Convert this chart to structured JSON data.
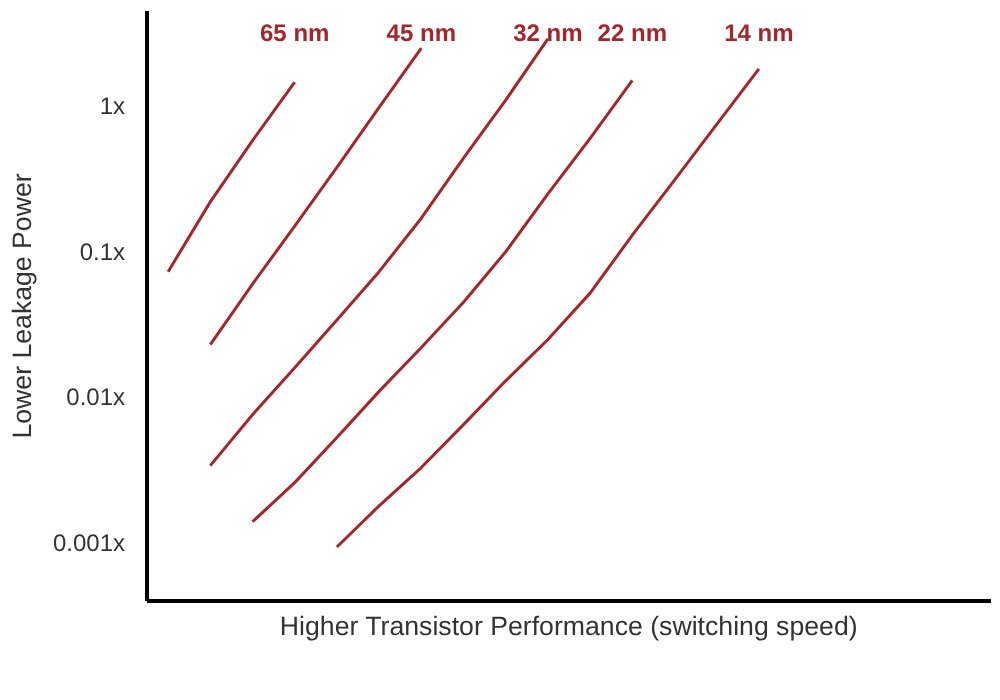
{
  "chart_data": {
    "type": "line",
    "xlabel": "Higher Transistor Performance (switching speed)",
    "ylabel": "Lower Leakage Power",
    "log": "y",
    "ylim": [
      0.0004,
      4.5
    ],
    "yticks": [
      {
        "value": 1,
        "label": "1x"
      },
      {
        "value": 0.1,
        "label": "0.1x"
      },
      {
        "value": 0.01,
        "label": "0.01x"
      },
      {
        "value": 0.001,
        "label": "0.001x"
      }
    ],
    "categories": [
      null,
      null,
      null,
      null,
      null,
      null,
      null,
      null,
      null,
      null,
      null,
      null,
      null,
      null,
      null,
      null,
      null,
      null,
      null,
      null
    ],
    "tick_labels": "y",
    "marker": "none",
    "line_style": "solid",
    "series": [
      {
        "name": "65 nm",
        "color": "#a3262a",
        "values": [
          0.073,
          0.22,
          0.58,
          1.46,
          null,
          null,
          null,
          null,
          null,
          null,
          null,
          null,
          null,
          null,
          null,
          null,
          null,
          null,
          null,
          null
        ]
      },
      {
        "name": "45 nm",
        "color": "#a3262a",
        "values": [
          null,
          0.023,
          0.06,
          0.15,
          0.38,
          0.98,
          2.5,
          null,
          null,
          null,
          null,
          null,
          null,
          null,
          null,
          null,
          null,
          null,
          null,
          null
        ]
      },
      {
        "name": "32 nm",
        "color": "#a3262a",
        "values": [
          null,
          0.0034,
          0.0076,
          0.016,
          0.034,
          0.073,
          0.17,
          0.44,
          1.1,
          2.9,
          null,
          null,
          null,
          null,
          null,
          null,
          null,
          null,
          null,
          null
        ]
      },
      {
        "name": "22 nm",
        "color": "#a3262a",
        "values": [
          null,
          null,
          0.0014,
          0.0026,
          0.0053,
          0.011,
          0.022,
          0.045,
          0.1,
          0.25,
          0.6,
          1.5,
          null,
          null,
          null,
          null,
          null,
          null,
          null,
          null
        ]
      },
      {
        "name": "14 nm",
        "color": "#a3262a",
        "values": [
          null,
          null,
          null,
          null,
          0.00094,
          0.0018,
          0.0033,
          0.0065,
          0.013,
          0.025,
          0.052,
          0.13,
          0.31,
          0.75,
          1.8,
          null,
          null,
          null,
          null,
          null
        ]
      }
    ]
  }
}
